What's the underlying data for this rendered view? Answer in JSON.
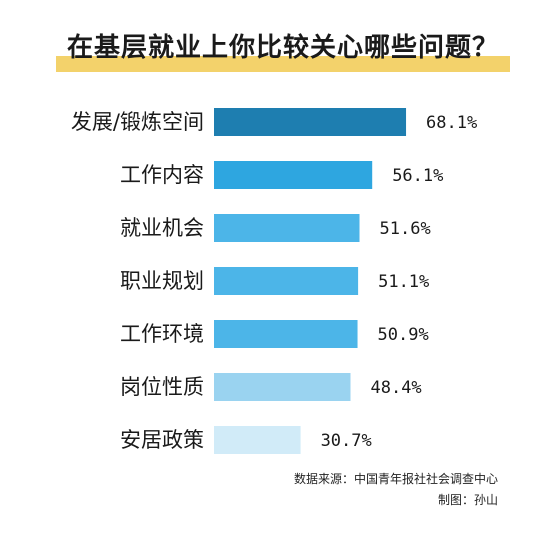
{
  "title": "在基层就业上你比较关心哪些问题？",
  "chart_data": {
    "type": "bar",
    "orientation": "horizontal",
    "categories": [
      "发展/锻炼空间",
      "工作内容",
      "就业机会",
      "职业规划",
      "工作环境",
      "岗位性质",
      "安居政策"
    ],
    "values": [
      68.1,
      56.1,
      51.6,
      51.1,
      50.9,
      48.4,
      30.7
    ],
    "value_labels": [
      "68.1%",
      "56.1%",
      "51.6%",
      "51.1%",
      "50.9%",
      "48.4%",
      "30.7%"
    ],
    "colors": [
      "#1e7eb0",
      "#2ea6e0",
      "#4cb5e8",
      "#4cb5e8",
      "#4cb5e8",
      "#9ad3f0",
      "#d1ebf8"
    ],
    "title": "在基层就业上你比较关心哪些问题？",
    "xlabel": "",
    "ylabel": "",
    "grid": false,
    "legend": "none"
  },
  "footer": {
    "source": "数据来源：中国青年报社社会调查中心",
    "credit": "制图：孙山"
  }
}
